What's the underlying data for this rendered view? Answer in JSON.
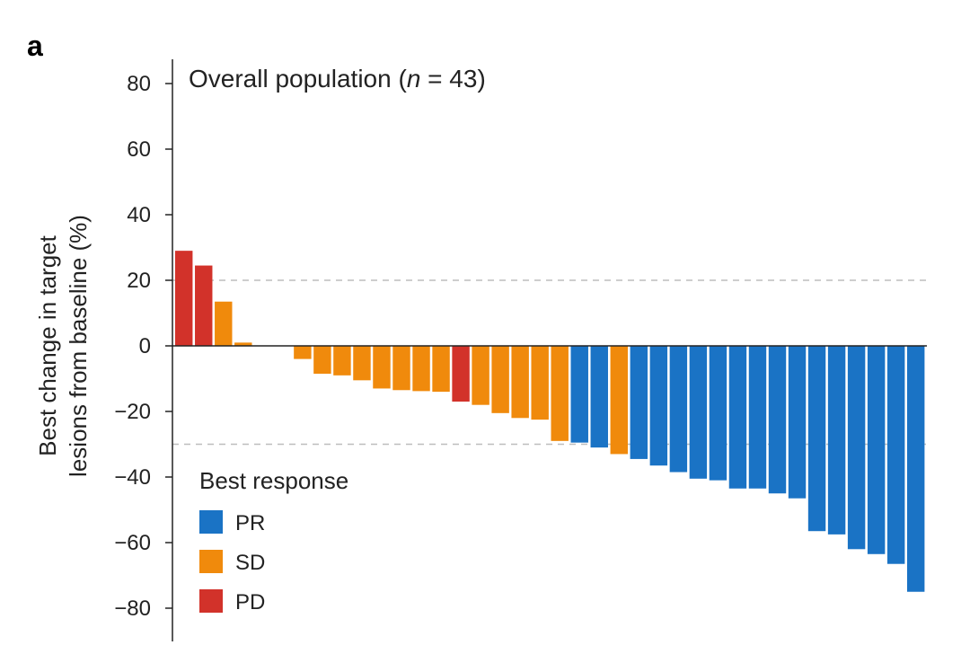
{
  "panel_label": "a",
  "chart_data": {
    "type": "bar",
    "title": "Overall population (n = 43)",
    "title_prefix": "Overall population (",
    "title_italic": "n",
    "title_suffix": " = 43)",
    "ylabel_lines": [
      "Best change in target",
      "lesions from baseline (%)"
    ],
    "ylim": [
      -85,
      88
    ],
    "yticks": [
      80,
      60,
      40,
      20,
      0,
      -20,
      -40,
      -60,
      -80
    ],
    "ytick_labels": [
      "80",
      "60",
      "40",
      "20",
      "0",
      "−20",
      "−40",
      "−60",
      "−80"
    ],
    "reference_lines": [
      20,
      -30
    ],
    "colors": {
      "PR": "#1a73c5",
      "SD": "#f08a0c",
      "PD": "#d2322a"
    },
    "legend": {
      "title": "Best response",
      "placement": "bottom-left",
      "entries": [
        {
          "label": "PR",
          "key": "PR"
        },
        {
          "label": "SD",
          "key": "SD"
        },
        {
          "label": "PD",
          "key": "PD"
        }
      ]
    },
    "bars": [
      {
        "value": 29,
        "response": "PD"
      },
      {
        "value": 24.5,
        "response": "PD"
      },
      {
        "value": 13.5,
        "response": "SD"
      },
      {
        "value": 1,
        "response": "SD"
      },
      {
        "value": 0,
        "response": "SD"
      },
      {
        "value": 0,
        "response": "SD"
      },
      {
        "value": -4,
        "response": "SD"
      },
      {
        "value": -8.5,
        "response": "SD"
      },
      {
        "value": -9,
        "response": "SD"
      },
      {
        "value": -10.5,
        "response": "SD"
      },
      {
        "value": -13,
        "response": "SD"
      },
      {
        "value": -13.5,
        "response": "SD"
      },
      {
        "value": -13.8,
        "response": "SD"
      },
      {
        "value": -14,
        "response": "SD"
      },
      {
        "value": -17,
        "response": "PD"
      },
      {
        "value": -18,
        "response": "SD"
      },
      {
        "value": -20.5,
        "response": "SD"
      },
      {
        "value": -22,
        "response": "SD"
      },
      {
        "value": -22.5,
        "response": "SD"
      },
      {
        "value": -29,
        "response": "SD"
      },
      {
        "value": -29.5,
        "response": "PR"
      },
      {
        "value": -31,
        "response": "PR"
      },
      {
        "value": -33,
        "response": "SD"
      },
      {
        "value": -34.5,
        "response": "PR"
      },
      {
        "value": -36.5,
        "response": "PR"
      },
      {
        "value": -38.5,
        "response": "PR"
      },
      {
        "value": -40.5,
        "response": "PR"
      },
      {
        "value": -41,
        "response": "PR"
      },
      {
        "value": -43.5,
        "response": "PR"
      },
      {
        "value": -43.5,
        "response": "PR"
      },
      {
        "value": -45,
        "response": "PR"
      },
      {
        "value": -46.5,
        "response": "PR"
      },
      {
        "value": -56.5,
        "response": "PR"
      },
      {
        "value": -57.5,
        "response": "PR"
      },
      {
        "value": -62,
        "response": "PR"
      },
      {
        "value": -63.5,
        "response": "PR"
      },
      {
        "value": -66.5,
        "response": "PR"
      },
      {
        "value": -75,
        "response": "PR"
      }
    ]
  }
}
